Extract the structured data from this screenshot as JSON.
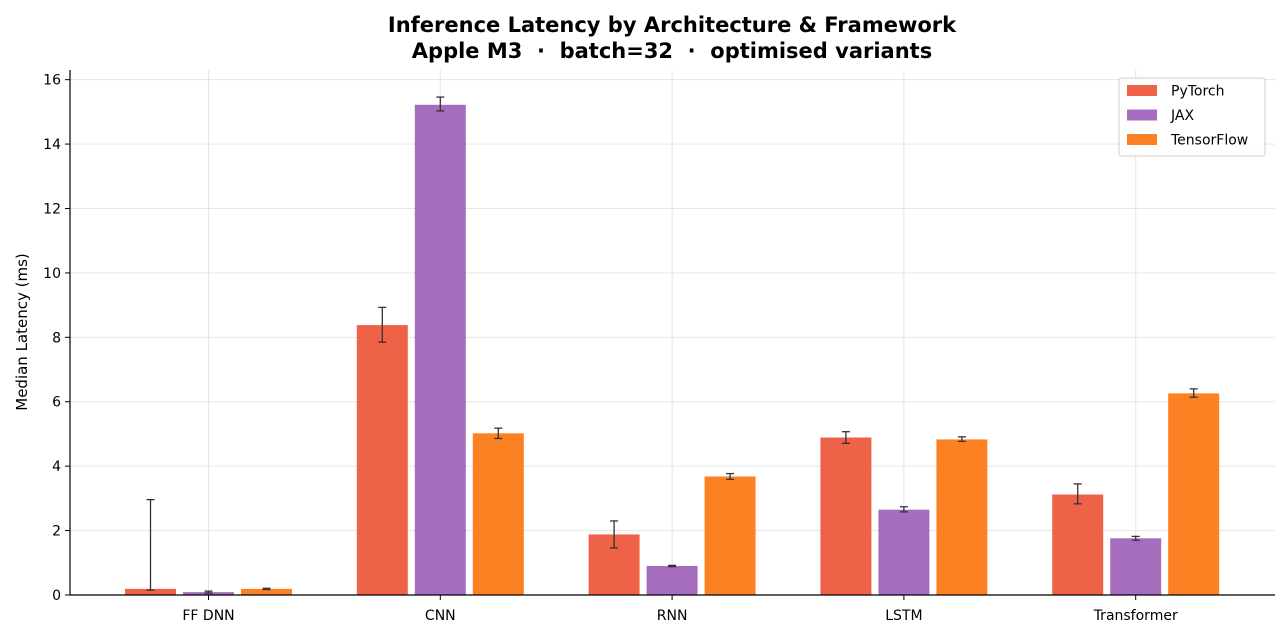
{
  "chart_data": {
    "type": "bar",
    "title": "Inference Latency by Architecture & Framework",
    "subtitle": "Apple M3  ·  batch=32  ·  optimised variants",
    "xlabel": "",
    "ylabel": "Median Latency (ms)",
    "ylim": [
      0,
      16.3
    ],
    "yticks": [
      0,
      2,
      4,
      6,
      8,
      10,
      12,
      14,
      16
    ],
    "grid": true,
    "legend_position": "top-right",
    "categories": [
      "FF DNN",
      "CNN",
      "RNN",
      "LSTM",
      "Transformer"
    ],
    "series": [
      {
        "name": "PyTorch",
        "color": "#EE6347",
        "values": [
          0.19,
          8.38,
          1.88,
          4.89,
          3.12
        ],
        "errors": [
          [
            0.15,
            2.96
          ],
          [
            7.85,
            8.93
          ],
          [
            1.46,
            2.3
          ],
          [
            4.71,
            5.07
          ],
          [
            2.83,
            3.45
          ]
        ]
      },
      {
        "name": "JAX",
        "color": "#A66DBF",
        "values": [
          0.09,
          15.22,
          0.9,
          2.65,
          1.76
        ],
        "errors": [
          [
            0.06,
            0.12
          ],
          [
            15.03,
            15.46
          ],
          [
            0.88,
            0.92
          ],
          [
            2.58,
            2.74
          ],
          [
            1.7,
            1.82
          ]
        ]
      },
      {
        "name": "TensorFlow",
        "color": "#FC8122",
        "values": [
          0.19,
          5.02,
          3.68,
          4.83,
          6.26
        ],
        "errors": [
          [
            0.17,
            0.21
          ],
          [
            4.86,
            5.18
          ],
          [
            3.59,
            3.77
          ],
          [
            4.77,
            4.91
          ],
          [
            6.14,
            6.4
          ]
        ]
      }
    ]
  }
}
